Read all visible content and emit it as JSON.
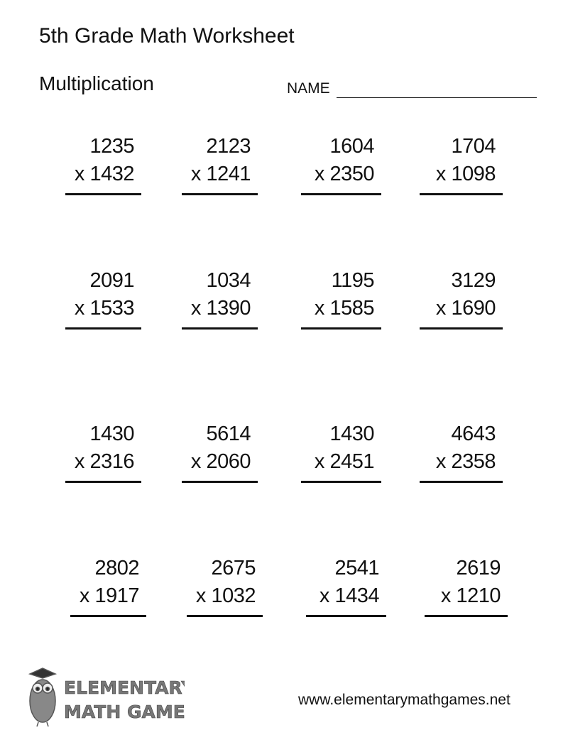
{
  "header": {
    "title": "5th Grade Math Worksheet",
    "subtitle": "Multiplication",
    "name_label": "NAME"
  },
  "problems": [
    {
      "top": "1235",
      "bottom": "1432"
    },
    {
      "top": "2123",
      "bottom": "1241"
    },
    {
      "top": "1604",
      "bottom": "2350"
    },
    {
      "top": "1704",
      "bottom": "1098"
    },
    {
      "top": "2091",
      "bottom": "1533"
    },
    {
      "top": "1034",
      "bottom": "1390"
    },
    {
      "top": "1195",
      "bottom": "1585"
    },
    {
      "top": "3129",
      "bottom": "1690"
    },
    {
      "top": "1430",
      "bottom": "2316"
    },
    {
      "top": "5614",
      "bottom": "2060"
    },
    {
      "top": "1430",
      "bottom": "2451"
    },
    {
      "top": "4643",
      "bottom": "2358"
    },
    {
      "top": "2802",
      "bottom": "1917"
    },
    {
      "top": "2675",
      "bottom": "1032"
    },
    {
      "top": "2541",
      "bottom": "1434"
    },
    {
      "top": "2619",
      "bottom": "1210"
    }
  ],
  "operator": "x",
  "footer": {
    "logo_text_line1": "ELEMENTARY",
    "logo_text_line2": "MATH GAMES",
    "url": "www.elementarymathgames.net"
  }
}
